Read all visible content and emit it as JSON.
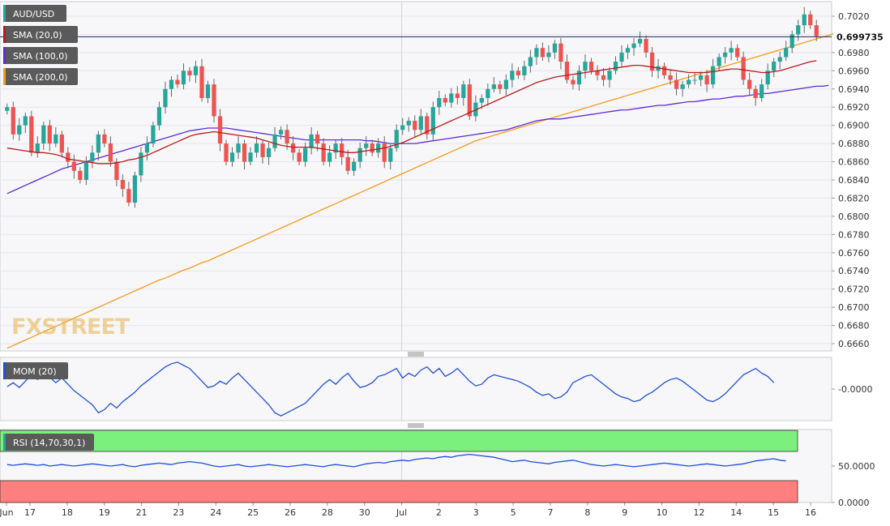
{
  "colors": {
    "up": "#26a69a",
    "down": "#ef5350",
    "sma20": "#b71c1c",
    "sma100": "#5b2bd4",
    "sma200": "#f59b1b",
    "mom": "#1f4fd6",
    "rsi": "#1f4fd6",
    "rsi_overbought_band": "#7cf07c",
    "rsi_oversold_band": "#ff7f7f",
    "legend_bg": "#5a5a5a",
    "current_price_line": "#1a2a55"
  },
  "logo": {
    "text": "FXSTREET"
  },
  "chart_data": [
    {
      "type": "candlestick",
      "symbol": "AUD/USD",
      "current_price": "0.699735",
      "legend": [
        {
          "label": "AUD/USD",
          "color": "#26a69a"
        },
        {
          "label": "SMA (20,0)",
          "color": "#b71c1c"
        },
        {
          "label": "SMA (100,0)",
          "color": "#5b2bd4"
        },
        {
          "label": "SMA (200,0)",
          "color": "#f59b1b"
        }
      ],
      "ylim": [
        0.6652,
        0.7036
      ],
      "yticks": [
        "0.7020",
        "0.7000",
        "0.6980",
        "0.6960",
        "0.6940",
        "0.6920",
        "0.6900",
        "0.6880",
        "0.6860",
        "0.6840",
        "0.6820",
        "0.6800",
        "0.6780",
        "0.6760",
        "0.6740",
        "0.6720",
        "0.6700",
        "0.6680",
        "0.6660"
      ],
      "x_ticks": [
        "Jun",
        "17",
        "18",
        "19",
        "21",
        "23",
        "24",
        "25",
        "26",
        "28",
        "30",
        "Jul",
        "2",
        "3",
        "5",
        "7",
        "8",
        "9",
        "10",
        "12",
        "14",
        "15",
        "16"
      ],
      "closes": [
        0.692,
        0.689,
        0.69,
        0.691,
        0.687,
        0.688,
        0.69,
        0.688,
        0.689,
        0.687,
        0.686,
        0.685,
        0.684,
        0.686,
        0.687,
        0.689,
        0.688,
        0.686,
        0.684,
        0.683,
        0.6815,
        0.6845,
        0.687,
        0.688,
        0.69,
        0.692,
        0.694,
        0.695,
        0.6945,
        0.696,
        0.6955,
        0.6965,
        0.693,
        0.6945,
        0.691,
        0.688,
        0.686,
        0.687,
        0.688,
        0.686,
        0.687,
        0.688,
        0.6865,
        0.6875,
        0.689,
        0.6895,
        0.688,
        0.687,
        0.686,
        0.6875,
        0.689,
        0.688,
        0.686,
        0.687,
        0.688,
        0.6865,
        0.685,
        0.686,
        0.6875,
        0.688,
        0.687,
        0.688,
        0.686,
        0.6875,
        0.6895,
        0.69,
        0.6905,
        0.6895,
        0.691,
        0.689,
        0.692,
        0.693,
        0.6925,
        0.6935,
        0.693,
        0.6945,
        0.691,
        0.6925,
        0.693,
        0.694,
        0.6945,
        0.694,
        0.695,
        0.696,
        0.6955,
        0.6965,
        0.6975,
        0.6985,
        0.6975,
        0.698,
        0.699,
        0.697,
        0.695,
        0.6945,
        0.696,
        0.697,
        0.696,
        0.6955,
        0.695,
        0.696,
        0.697,
        0.698,
        0.6985,
        0.699,
        0.6995,
        0.698,
        0.696,
        0.6965,
        0.6955,
        0.695,
        0.694,
        0.6945,
        0.695,
        0.695,
        0.6955,
        0.6945,
        0.6965,
        0.6975,
        0.698,
        0.6985,
        0.6975,
        0.695,
        0.694,
        0.693,
        0.6945,
        0.696,
        0.697,
        0.6975,
        0.6985,
        0.7,
        0.701,
        0.7022,
        0.701,
        0.6998
      ],
      "sma20": [
        0.6875,
        0.6874,
        0.6873,
        0.6872,
        0.6871,
        0.687,
        0.687,
        0.6869,
        0.6868,
        0.6866,
        0.6863,
        0.6862,
        0.6861,
        0.686,
        0.6859,
        0.6858,
        0.6858,
        0.6858,
        0.6859,
        0.686,
        0.6862,
        0.6863,
        0.6865,
        0.6867,
        0.687,
        0.6873,
        0.6876,
        0.6879,
        0.6882,
        0.6885,
        0.6888,
        0.689,
        0.6891,
        0.6892,
        0.6893,
        0.6892,
        0.6891,
        0.689,
        0.6889,
        0.6888,
        0.6887,
        0.6886,
        0.6884,
        0.6882,
        0.688,
        0.6878,
        0.6877,
        0.6876,
        0.6876,
        0.6876,
        0.6876,
        0.6875,
        0.6874,
        0.6873,
        0.6872,
        0.6871,
        0.687,
        0.687,
        0.6871,
        0.6872,
        0.6873,
        0.6874,
        0.6875,
        0.6877,
        0.6879,
        0.6881,
        0.6884,
        0.6887,
        0.689,
        0.6893,
        0.6896,
        0.6899,
        0.6902,
        0.6905,
        0.6908,
        0.6911,
        0.6914,
        0.6917,
        0.692,
        0.6923,
        0.6926,
        0.6929,
        0.6932,
        0.6935,
        0.6938,
        0.6941,
        0.6944,
        0.6947,
        0.6949,
        0.6951,
        0.6953,
        0.6954,
        0.6955,
        0.6956,
        0.6957,
        0.6958,
        0.6959,
        0.696,
        0.6961,
        0.6962,
        0.6963,
        0.6964,
        0.6965,
        0.6966,
        0.6966,
        0.6965,
        0.6964,
        0.6963,
        0.6962,
        0.6961,
        0.696,
        0.6959,
        0.6958,
        0.6958,
        0.6958,
        0.6958,
        0.6959,
        0.696,
        0.6961,
        0.6962,
        0.6962,
        0.6961,
        0.696,
        0.6959,
        0.6958,
        0.6958,
        0.6959,
        0.696,
        0.6962,
        0.6964,
        0.6966,
        0.6968,
        0.697,
        0.6971
      ],
      "sma100": [
        0.6825,
        0.6828,
        0.6831,
        0.6834,
        0.6837,
        0.684,
        0.6843,
        0.6846,
        0.6849,
        0.6852,
        0.6854,
        0.6856,
        0.6858,
        0.686,
        0.6862,
        0.6864,
        0.6866,
        0.6868,
        0.687,
        0.6872,
        0.6874,
        0.6876,
        0.6878,
        0.688,
        0.6882,
        0.6884,
        0.6886,
        0.6888,
        0.689,
        0.6892,
        0.6894,
        0.6895,
        0.6896,
        0.6897,
        0.6897,
        0.6897,
        0.6897,
        0.6896,
        0.6895,
        0.6894,
        0.6893,
        0.6892,
        0.6891,
        0.689,
        0.6889,
        0.6888,
        0.6887,
        0.6886,
        0.6885,
        0.6884,
        0.6884,
        0.6884,
        0.6884,
        0.6884,
        0.6884,
        0.6884,
        0.6884,
        0.6884,
        0.6884,
        0.6883,
        0.6883,
        0.6882,
        0.6881,
        0.688,
        0.688,
        0.688,
        0.688,
        0.688,
        0.6881,
        0.6882,
        0.6883,
        0.6884,
        0.6885,
        0.6886,
        0.6887,
        0.6888,
        0.6889,
        0.689,
        0.6891,
        0.6892,
        0.6893,
        0.6894,
        0.6895,
        0.6897,
        0.6899,
        0.6901,
        0.6903,
        0.6905,
        0.6906,
        0.6907,
        0.6907,
        0.6907,
        0.6908,
        0.6909,
        0.691,
        0.6911,
        0.6912,
        0.6913,
        0.6914,
        0.6915,
        0.6916,
        0.6917,
        0.6917,
        0.6918,
        0.6919,
        0.692,
        0.6921,
        0.6922,
        0.6922,
        0.6923,
        0.6924,
        0.6925,
        0.6926,
        0.6926,
        0.6927,
        0.6928,
        0.6929,
        0.6929,
        0.693,
        0.6931,
        0.6932,
        0.6932,
        0.6933,
        0.6934,
        0.6935,
        0.6935,
        0.6936,
        0.6937,
        0.6938,
        0.6939,
        0.694,
        0.6941,
        0.6942,
        0.6943,
        0.6943,
        0.6944
      ],
      "sma200": [
        0.6655,
        0.6658,
        0.6661,
        0.6664,
        0.6667,
        0.667,
        0.6673,
        0.6676,
        0.6679,
        0.6682,
        0.6685,
        0.6688,
        0.6691,
        0.6694,
        0.6697,
        0.67,
        0.6703,
        0.6706,
        0.6709,
        0.6712,
        0.6715,
        0.6718,
        0.6721,
        0.6724,
        0.6727,
        0.673,
        0.6732,
        0.6735,
        0.6738,
        0.6741,
        0.6743,
        0.6746,
        0.6749,
        0.6751,
        0.6754,
        0.6757,
        0.676,
        0.6763,
        0.6766,
        0.6769,
        0.6772,
        0.6775,
        0.6778,
        0.6781,
        0.6784,
        0.6787,
        0.679,
        0.6793,
        0.6796,
        0.6799,
        0.6802,
        0.6805,
        0.6808,
        0.6811,
        0.6814,
        0.6817,
        0.682,
        0.6823,
        0.6826,
        0.6829,
        0.6832,
        0.6835,
        0.6838,
        0.6841,
        0.6844,
        0.6847,
        0.685,
        0.6853,
        0.6856,
        0.6859,
        0.6862,
        0.6865,
        0.6868,
        0.6871,
        0.6874,
        0.6877,
        0.688,
        0.6883,
        0.6885,
        0.6887,
        0.6889,
        0.6891,
        0.6893,
        0.6895,
        0.6897,
        0.6899,
        0.6901,
        0.6903,
        0.6905,
        0.6907,
        0.6909,
        0.6911,
        0.6913,
        0.6915,
        0.6917,
        0.6919,
        0.6921,
        0.6923,
        0.6925,
        0.6927,
        0.6929,
        0.6931,
        0.6933,
        0.6935,
        0.6937,
        0.6939,
        0.6941,
        0.6943,
        0.6945,
        0.6947,
        0.6949,
        0.6951,
        0.6953,
        0.6955,
        0.6957,
        0.6959,
        0.6961,
        0.6963,
        0.6965,
        0.6967,
        0.6969,
        0.6971,
        0.6973,
        0.6975,
        0.6977,
        0.6979,
        0.6981,
        0.6983,
        0.6985,
        0.6987,
        0.6989,
        0.6991,
        0.6993,
        0.6995,
        0.6997,
        0.6999,
        0.7001,
        0.7003
      ]
    },
    {
      "type": "line",
      "name": "MOM (20)",
      "ylim": [
        -0.004,
        0.004
      ],
      "yticks": [
        "-0.0000"
      ],
      "values": [
        0.0003,
        0.0008,
        0.0002,
        0.001,
        0.0018,
        0.0012,
        0.002,
        0.0015,
        0.0008,
        0.0014,
        0.0006,
        -0.0002,
        -0.0008,
        -0.0014,
        -0.002,
        -0.003,
        -0.0026,
        -0.0018,
        -0.0024,
        -0.0016,
        -0.001,
        -0.0004,
        0.0004,
        0.001,
        0.0016,
        0.0022,
        0.0028,
        0.0032,
        0.0034,
        0.003,
        0.0026,
        0.0018,
        0.001,
        0.0002,
        0.0004,
        0.001,
        0.0006,
        0.0014,
        0.002,
        0.0012,
        0.0004,
        -0.0004,
        -0.0012,
        -0.002,
        -0.003,
        -0.0034,
        -0.003,
        -0.0026,
        -0.0022,
        -0.0018,
        -0.001,
        -0.0002,
        0.0006,
        0.0012,
        0.0006,
        0.0014,
        0.002,
        0.001,
        0.0002,
        0.0004,
        0.0008,
        0.0016,
        0.0018,
        0.0022,
        0.0026,
        0.0014,
        0.002,
        0.0016,
        0.0024,
        0.0028,
        0.002,
        0.0026,
        0.0016,
        0.002,
        0.0026,
        0.0018,
        0.001,
        0.0004,
        0.0006,
        0.0014,
        0.0018,
        0.0016,
        0.0014,
        0.0012,
        0.001,
        0.0006,
        0.0002,
        -0.0004,
        -0.0008,
        -0.0006,
        -0.0012,
        -0.001,
        -0.0004,
        0.0008,
        0.0012,
        0.0016,
        0.0018,
        0.0012,
        0.0006,
        0.0,
        -0.0006,
        -0.001,
        -0.0012,
        -0.0016,
        -0.0014,
        -0.0008,
        -0.0004,
        0.0002,
        0.0008,
        0.0012,
        0.0014,
        0.001,
        0.0004,
        -0.0002,
        -0.0008,
        -0.0014,
        -0.0016,
        -0.0012,
        -0.0006,
        0.0002,
        0.001,
        0.0018,
        0.0022,
        0.0026,
        0.002,
        0.0016,
        0.0008
      ],
      "legend_label": "MOM (20)"
    },
    {
      "type": "line",
      "name": "RSI (14,70,30,1)",
      "ylim": [
        0,
        100
      ],
      "yticks": [
        "50.0000",
        "0.0000"
      ],
      "overbought": 70,
      "oversold": 30,
      "values": [
        52,
        51,
        52,
        53,
        52,
        51,
        52,
        50,
        51,
        52,
        51,
        50,
        51,
        52,
        53,
        52,
        51,
        50,
        51,
        52,
        50,
        49,
        51,
        52,
        53,
        54,
        53,
        52,
        54,
        55,
        56,
        55,
        54,
        52,
        50,
        49,
        50,
        51,
        52,
        50,
        49,
        50,
        51,
        52,
        51,
        50,
        49,
        50,
        51,
        52,
        51,
        50,
        49,
        51,
        52,
        51,
        50,
        49,
        51,
        53,
        54,
        55,
        54,
        56,
        57,
        58,
        57,
        59,
        60,
        61,
        60,
        62,
        63,
        62,
        64,
        65,
        66,
        65,
        64,
        63,
        62,
        60,
        58,
        56,
        57,
        58,
        56,
        55,
        54,
        53,
        55,
        56,
        57,
        58,
        56,
        54,
        52,
        51,
        50,
        51,
        52,
        51,
        50,
        49,
        50,
        51,
        52,
        53,
        54,
        53,
        52,
        51,
        50,
        51,
        52,
        53,
        52,
        51,
        50,
        51,
        52,
        53,
        55,
        57,
        58,
        59,
        60,
        58,
        57
      ],
      "legend_label": "RSI (14,70,30,1)"
    }
  ]
}
